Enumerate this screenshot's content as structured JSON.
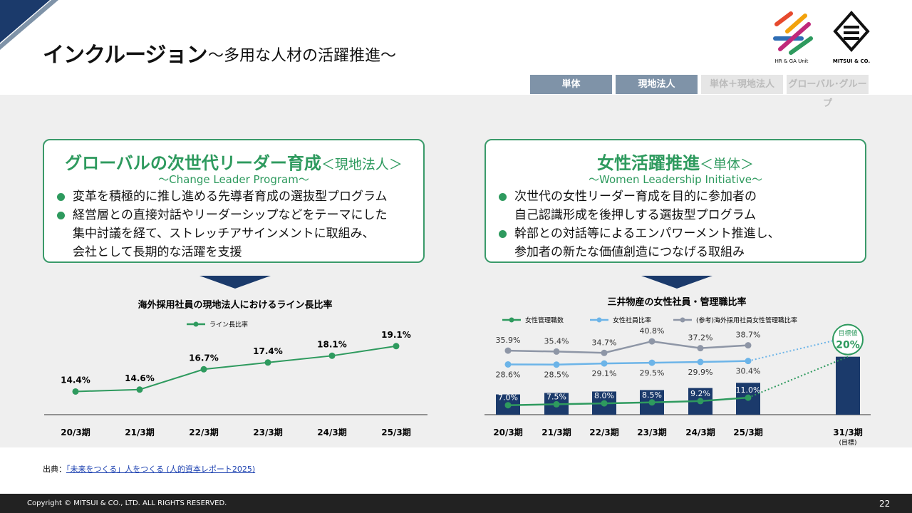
{
  "header": {
    "title": "インクルージョン",
    "subtitle": "～多用な人材の活躍推進～",
    "unit_logo": "HR & GA Unit",
    "company_logo": "MITSUI & CO."
  },
  "tabs": [
    "単体",
    "現地法人",
    "単体＋現地法人",
    "グローバル･グループ"
  ],
  "boxes": [
    {
      "title": "グローバルの次世代リーダー育成",
      "tag": "＜現地法人＞",
      "subtitle": "～Change Leader Program～",
      "bullets": [
        [
          "変革を積極的に推し進める先導者育成の選抜型プログラム"
        ],
        [
          "経営層との直接対話やリーダーシップなどをテーマにした",
          "集中討議を経て、ストレッチアサインメントに取組み、",
          "会社として長期的な活躍を支援"
        ]
      ]
    },
    {
      "title": "女性活躍推進",
      "tag": "＜単体＞",
      "subtitle": "～Women Leadership Initiative～",
      "bullets": [
        [
          "次世代の女性リーダー育成を目的に参加者の",
          "自己認識形成を後押しする選抜型プログラム"
        ],
        [
          "幹部との対話等によるエンパワーメント推進し、",
          "参加者の新たな価値創造につなげる取組み"
        ]
      ]
    }
  ],
  "chart_data": [
    {
      "type": "line",
      "title": "海外採用社員の現地法人におけるライン長比率",
      "categories": [
        "20/3期",
        "21/3期",
        "22/3期",
        "23/3期",
        "24/3期",
        "25/3期"
      ],
      "series": [
        {
          "name": "ライン長比率",
          "color": "#2e9a5e",
          "values": [
            14.4,
            14.6,
            16.7,
            17.4,
            18.1,
            19.1
          ],
          "value_labels": [
            "14.4%",
            "14.6%",
            "16.7%",
            "17.4%",
            "18.1%",
            "19.1%"
          ]
        }
      ],
      "ylim": [
        12,
        21
      ]
    },
    {
      "type": "combo",
      "title": "三井物産の女性社員・管理職比率",
      "categories": [
        "20/3期",
        "21/3期",
        "22/3期",
        "23/3期",
        "24/3期",
        "25/3期",
        "31/3期"
      ],
      "series": [
        {
          "name": "女性管理職数",
          "color": "#2e9a5e",
          "bar_color": "#1b3a6b",
          "axis": "y2",
          "values": [
            7.0,
            7.5,
            8.0,
            8.5,
            9.2,
            11.0,
            20
          ],
          "value_labels": [
            "7.0%",
            "7.5%",
            "8.0%",
            "8.5%",
            "9.2%",
            "11.0%",
            "20%"
          ]
        },
        {
          "name": "女性社員比率",
          "color": "#6cb4e8",
          "values": [
            28.6,
            28.5,
            29.1,
            29.5,
            29.9,
            30.4,
            null
          ],
          "value_labels": [
            "28.6%",
            "28.5%",
            "29.1%",
            "29.5%",
            "29.9%",
            "30.4%",
            null
          ]
        },
        {
          "name": "(参考)海外採用社員女性管理職比率",
          "color": "#8e96a6",
          "values": [
            35.9,
            35.4,
            34.7,
            40.8,
            37.2,
            38.7,
            null
          ],
          "value_labels": [
            "35.9%",
            "35.4%",
            "34.7%",
            "40.8%",
            "37.2%",
            "38.7%",
            null
          ]
        }
      ],
      "ylim": [
        2,
        48
      ],
      "y2lim": [
        0,
        30
      ],
      "annotations": [
        "目標値",
        "(目標)"
      ]
    }
  ],
  "source": {
    "label": "出典：",
    "link": "「未来をつくる」人をつくる (人的資本レポート2025)"
  },
  "footer": {
    "copyright": "Copyright © MITSUI & CO., LTD. ALL RIGHTS RESERVED.",
    "page": "22"
  }
}
